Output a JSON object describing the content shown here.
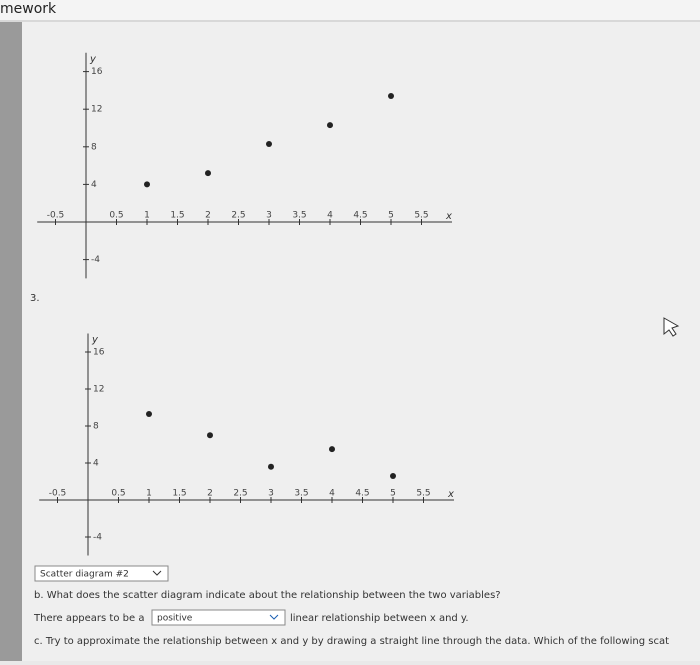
{
  "header": {
    "title": "mework"
  },
  "plot1": {
    "type": "scatter",
    "x_label": "x",
    "y_label": "y",
    "x": [
      1,
      2,
      3,
      4,
      5
    ],
    "values": [
      4.0,
      5.2,
      8.3,
      10.3,
      13.4
    ],
    "xlim": [
      -0.8,
      6
    ],
    "ylim": [
      -6,
      18
    ],
    "xticks": [
      -0.5,
      0.5,
      1,
      1.5,
      2,
      2.5,
      3,
      3.5,
      4,
      4.5,
      5,
      5.5
    ],
    "yticks": [
      -4,
      4,
      8,
      12,
      16
    ]
  },
  "question_number": "3.",
  "plot2": {
    "type": "scatter",
    "x_label": "x",
    "y_label": "y",
    "x": [
      1,
      2,
      3,
      4,
      5
    ],
    "values": [
      9.3,
      7.0,
      3.6,
      5.5,
      2.6
    ],
    "xlim": [
      -0.8,
      6
    ],
    "ylim": [
      -6,
      18
    ],
    "xticks": [
      -0.5,
      0.5,
      1,
      1.5,
      2,
      2.5,
      3,
      3.5,
      4,
      4.5,
      5,
      5.5
    ],
    "yticks": [
      -4,
      4,
      8,
      12,
      16
    ]
  },
  "dropdown": "Scatter diagram #2",
  "question_b": "b. What does the scatter diagram indicate about the relationship between the two variables?",
  "answer_b": {
    "before": "There appears to be a",
    "selected": "positive",
    "after": "linear relationship between x and y."
  },
  "question_c": "c. Try to approximate the relationship between x and y by drawing a straight line through the data. Which of the following scat"
}
